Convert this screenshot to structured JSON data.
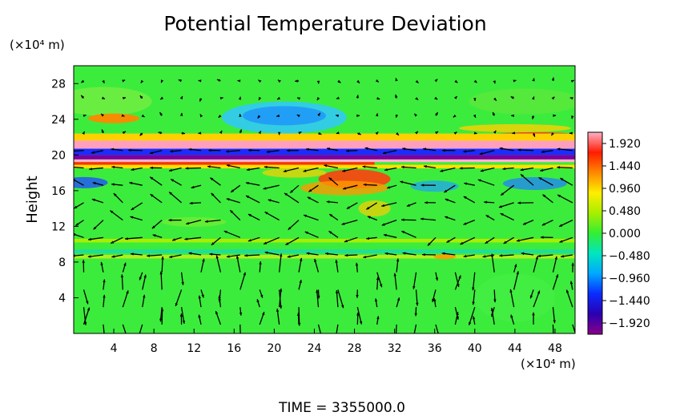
{
  "chart_data": {
    "type": "heatmap",
    "title": "Potential Temperature Deviation",
    "ylabel": "Height",
    "x_unit": "(×10⁴ m)",
    "y_unit": "(×10⁴ m)",
    "x_ticks": [
      4,
      8,
      12,
      16,
      20,
      24,
      28,
      32,
      36,
      40,
      44,
      48
    ],
    "y_ticks": [
      4,
      8,
      12,
      16,
      20,
      24,
      28
    ],
    "xlim": [
      0,
      50
    ],
    "ylim": [
      0,
      30
    ],
    "colorbar": {
      "ticks": [
        "1.920",
        "1.440",
        "0.960",
        "0.480",
        "0.000",
        "−0.480",
        "−0.960",
        "−1.440",
        "−1.920"
      ],
      "range": [
        -2.16,
        2.16
      ]
    },
    "overlay": "wind vectors",
    "footer": "TIME = 3355000.0"
  }
}
